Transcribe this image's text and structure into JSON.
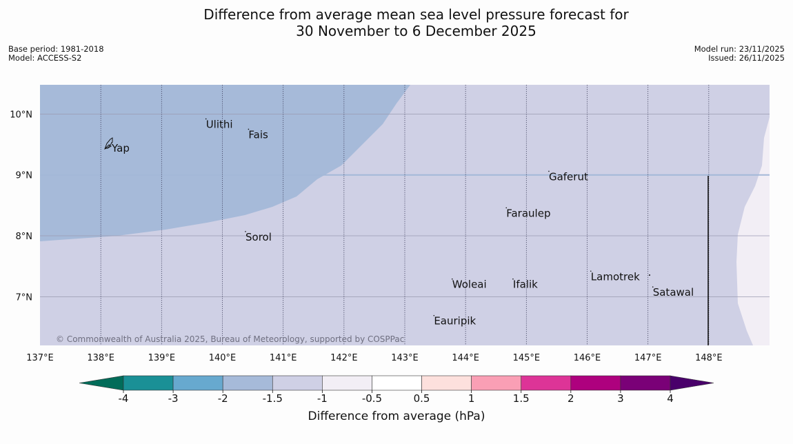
{
  "title": {
    "line1": "Difference from average mean sea level pressure forecast for",
    "line2": "30 November to 6 December 2025"
  },
  "meta_left": {
    "base_period": "Base period: 1981-2018",
    "model": "Model: ACCESS-S2"
  },
  "meta_right": {
    "model_run": "Model run: 23/11/2025",
    "issued": "Issued: 26/11/2025"
  },
  "copyright": "© Commonwealth of Australia 2025, Bureau of Meteorology, supported by COSPPac",
  "map": {
    "lon_range": [
      137,
      149
    ],
    "lat_range": [
      6.2,
      10.48
    ],
    "lon_ticks": [
      {
        "value": 137,
        "label": "137°E"
      },
      {
        "value": 138,
        "label": "138°E"
      },
      {
        "value": 139,
        "label": "139°E"
      },
      {
        "value": 140,
        "label": "140°E"
      },
      {
        "value": 141,
        "label": "141°E"
      },
      {
        "value": 142,
        "label": "142°E"
      },
      {
        "value": 143,
        "label": "143°E"
      },
      {
        "value": 144,
        "label": "144°E"
      },
      {
        "value": 145,
        "label": "145°E"
      },
      {
        "value": 146,
        "label": "146°E"
      },
      {
        "value": 147,
        "label": "147°E"
      },
      {
        "value": 148,
        "label": "148°E"
      }
    ],
    "lat_ticks": [
      {
        "value": 10,
        "label": "10°N"
      },
      {
        "value": 9,
        "label": "9°N"
      },
      {
        "value": 8,
        "label": "8°N"
      },
      {
        "value": 7,
        "label": "7°N"
      }
    ],
    "places": [
      {
        "name": "Yap",
        "lon": 138.18,
        "lat": 9.53
      },
      {
        "name": "Ulithi",
        "lon": 139.73,
        "lat": 9.92
      },
      {
        "name": "Fais",
        "lon": 140.43,
        "lat": 9.75
      },
      {
        "name": "Gaferut",
        "lon": 145.37,
        "lat": 9.06
      },
      {
        "name": "Faraulep",
        "lon": 144.67,
        "lat": 8.46
      },
      {
        "name": "Sorol",
        "lon": 140.38,
        "lat": 8.07
      },
      {
        "name": "Lamotrek",
        "lon": 146.06,
        "lat": 7.42
      },
      {
        "name": "Woleai",
        "lon": 143.78,
        "lat": 7.29
      },
      {
        "name": "Ifalik",
        "lon": 144.78,
        "lat": 7.29
      },
      {
        "name": "Satawal",
        "lon": 147.08,
        "lat": 7.16
      },
      {
        "name": "Eauripik",
        "lon": 143.48,
        "lat": 6.69
      }
    ],
    "regions": [
      {
        "category": "-2 to -1.5",
        "color": "#a6bad9"
      },
      {
        "category": "-1.5 to -1",
        "color": "#cfd0e5"
      },
      {
        "category": "-1 to -0.5",
        "color": "#f2eef5"
      }
    ]
  },
  "colorbar": {
    "label": "Difference from average (hPa)",
    "ticks": [
      "-4",
      "-3",
      "-2",
      "-1.5",
      "-1",
      "-0.5",
      "0.5",
      "1",
      "1.5",
      "2",
      "3",
      "4"
    ],
    "colors": [
      "#1a9096",
      "#67a9cf",
      "#a6bad9",
      "#cfd0e5",
      "#f2eef5",
      "#ffffff",
      "#fde0dd",
      "#fa9fb5",
      "#dd3497",
      "#ae017e",
      "#7a0177"
    ],
    "under_color": "#016c59",
    "over_color": "#49006a"
  }
}
